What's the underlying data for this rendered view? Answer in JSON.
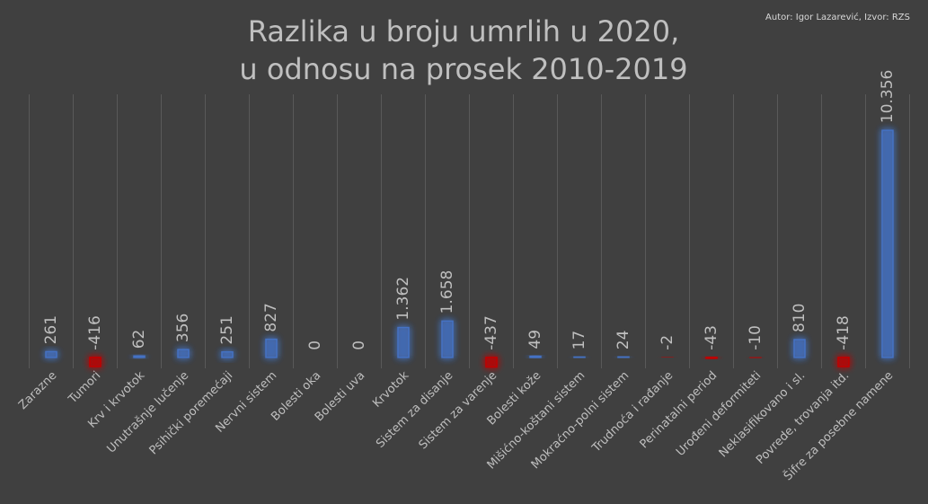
{
  "chart_data": {
    "type": "bar",
    "title": [
      "Razlika u broju umrlih u 2020,",
      "u odnosu na prosek 2010-2019"
    ],
    "source": "Autor: Igor Lazarević, Izvor: RZS",
    "categories": [
      "Zarazne",
      "Tumori",
      "Krv i krvotok",
      "Unutrašnje lučenje",
      "Psihički poremećaji",
      "Nervni sistem",
      "Bolesti oka",
      "Bolesti uva",
      "Krvotok",
      "Sistem za disanje",
      "Sistem za varenje",
      "Bolesti kože",
      "Mišićno-koštani sistem",
      "Mokraćno-polni sistem",
      "Trudnoća i rađanje",
      "Perinatalni period",
      "Urođeni deformiteti",
      "Neklasifikovano i sl.",
      "Povrede, trovanja itd.",
      "Šifre za posebne namene"
    ],
    "values": [
      261,
      -416,
      62,
      356,
      251,
      827,
      0,
      0,
      1362,
      1658,
      -437,
      49,
      17,
      24,
      -2,
      -43,
      -10,
      810,
      -418,
      10356
    ],
    "value_labels": [
      "261",
      "-416",
      "62",
      "356",
      "251",
      "827",
      "0",
      "0",
      "1.362",
      "1.658",
      "-437",
      "49",
      "17",
      "24",
      "-2",
      "-43",
      "-10",
      "810",
      "-418",
      "10.356"
    ],
    "colors": {
      "positive": "#4472c4",
      "negative": "#c00000"
    },
    "ylim": [
      -500,
      12000
    ],
    "grid": true
  }
}
